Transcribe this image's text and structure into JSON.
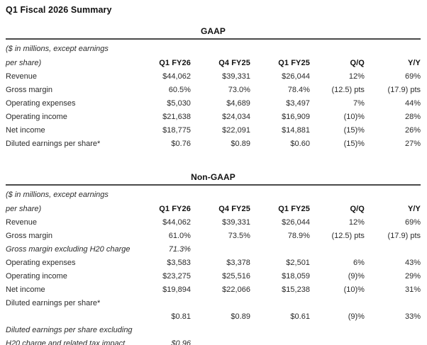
{
  "page_title": "Q1 Fiscal 2026 Summary",
  "sections": [
    {
      "id": "gaap",
      "title": "GAAP",
      "note_line1": "($ in millions, except earnings",
      "note_line2": "per share)",
      "columns": [
        "Q1 FY26",
        "Q4 FY25",
        "Q1 FY25",
        "Q/Q",
        "Y/Y"
      ],
      "rows": [
        {
          "label": "Revenue",
          "italic": false,
          "values": [
            "$44,062",
            "$39,331",
            "$26,044",
            "12%",
            "69%"
          ]
        },
        {
          "label": "Gross margin",
          "italic": false,
          "values": [
            "60.5%",
            "73.0%",
            "78.4%",
            "(12.5) pts",
            "(17.9) pts"
          ]
        },
        {
          "label": "Operating expenses",
          "italic": false,
          "values": [
            "$5,030",
            "$4,689",
            "$3,497",
            "7%",
            "44%"
          ]
        },
        {
          "label": "Operating income",
          "italic": false,
          "values": [
            "$21,638",
            "$24,034",
            "$16,909",
            "(10)%",
            "28%"
          ]
        },
        {
          "label": "Net income",
          "italic": false,
          "values": [
            "$18,775",
            "$22,091",
            "$14,881",
            "(15)%",
            "26%"
          ]
        },
        {
          "label": "Diluted earnings per share*",
          "italic": false,
          "values": [
            "$0.76",
            "$0.89",
            "$0.60",
            "(15)%",
            "27%"
          ]
        }
      ]
    },
    {
      "id": "non-gaap",
      "title": "Non-GAAP",
      "note_line1": "($ in millions, except earnings",
      "note_line2": "per share)",
      "columns": [
        "Q1 FY26",
        "Q4 FY25",
        "Q1 FY25",
        "Q/Q",
        "Y/Y"
      ],
      "rows": [
        {
          "label": "Revenue",
          "italic": false,
          "values": [
            "$44,062",
            "$39,331",
            "$26,044",
            "12%",
            "69%"
          ]
        },
        {
          "label": "Gross margin",
          "italic": false,
          "values": [
            "61.0%",
            "73.5%",
            "78.9%",
            "(12.5) pts",
            "(17.9) pts"
          ]
        },
        {
          "label": "Gross margin excluding H20 charge",
          "italic": true,
          "values": [
            "71.3%",
            "",
            "",
            "",
            ""
          ]
        },
        {
          "label": "Operating expenses",
          "italic": false,
          "values": [
            "$3,583",
            "$3,378",
            "$2,501",
            "6%",
            "43%"
          ]
        },
        {
          "label": "Operating income",
          "italic": false,
          "values": [
            "$23,275",
            "$25,516",
            "$18,059",
            "(9)%",
            "29%"
          ]
        },
        {
          "label": "Net income",
          "italic": false,
          "values": [
            "$19,894",
            "$22,066",
            "$15,238",
            "(10)%",
            "31%"
          ]
        },
        {
          "label": "Diluted earnings per share*",
          "italic": false,
          "values": [
            "",
            "",
            "",
            "",
            ""
          ]
        },
        {
          "label": "",
          "italic": false,
          "values": [
            "$0.81",
            "$0.89",
            "$0.61",
            "(9)%",
            "33%"
          ]
        },
        {
          "label": "Diluted earnings per share excluding",
          "italic": true,
          "values": [
            "",
            "",
            "",
            "",
            ""
          ]
        },
        {
          "label": "H20 charge and related tax impact",
          "italic": true,
          "values": [
            "$0.96",
            "",
            "",
            "",
            ""
          ]
        }
      ]
    }
  ]
}
